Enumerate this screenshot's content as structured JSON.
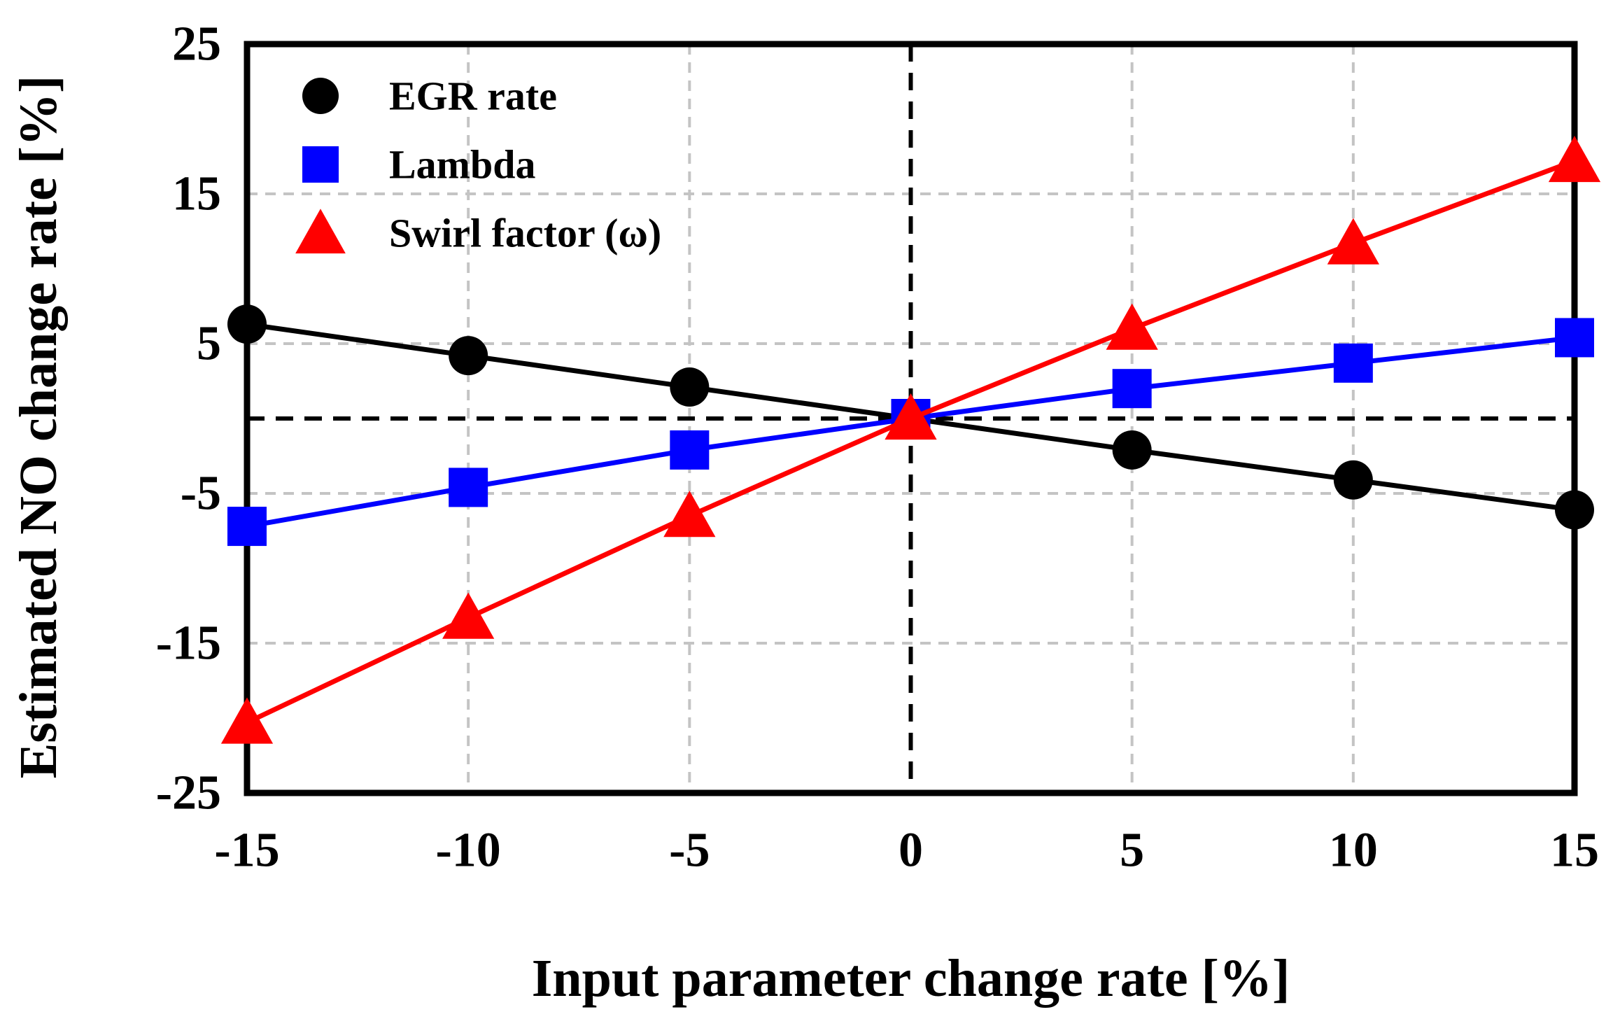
{
  "chart_data": {
    "type": "line",
    "title": "",
    "xlabel": "Input parameter change rate [%]",
    "ylabel": "Estimated NO change rate [%]",
    "xlim": [
      -15,
      15
    ],
    "ylim": [
      -25,
      25
    ],
    "xticks": [
      -15,
      -10,
      -5,
      0,
      5,
      10,
      15
    ],
    "yticks": [
      25,
      15,
      5,
      -5,
      -15,
      -25
    ],
    "x": [
      -15,
      -10,
      -5,
      0,
      5,
      10,
      15
    ],
    "series": [
      {
        "name": "EGR rate",
        "color": "#000000",
        "marker": "circle",
        "values": [
          6.3,
          4.2,
          2.1,
          0,
          -2.1,
          -4.1,
          -6.1
        ]
      },
      {
        "name": "Lambda",
        "color": "#0000ff",
        "marker": "square",
        "values": [
          -7.2,
          -4.6,
          -2.1,
          0,
          2.0,
          3.7,
          5.4
        ]
      },
      {
        "name": "Swirl factor (ω)",
        "color": "#ff0000",
        "marker": "triangle",
        "values": [
          -20.3,
          -13.3,
          -6.5,
          0,
          6.0,
          11.7,
          17.2
        ]
      }
    ],
    "grid": {
      "x_lines": [
        -10,
        -5,
        5,
        10
      ],
      "y_lines": [
        15,
        5,
        -5,
        -15
      ],
      "color": "#c4c4c4",
      "style": "dashed"
    },
    "zero_lines": {
      "x": 0,
      "y": 0,
      "color": "#000000",
      "style": "dashed"
    },
    "legend": {
      "position": "top-left",
      "entries": [
        "EGR rate",
        "Lambda",
        "Swirl factor (ω)"
      ]
    }
  }
}
